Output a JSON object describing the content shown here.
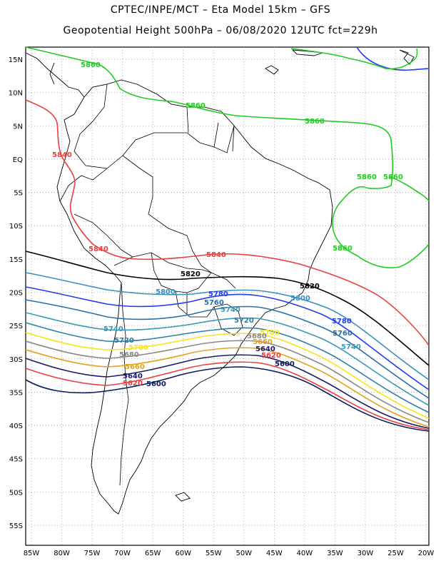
{
  "header": {
    "line1": "CPTEC/INPE/MCT –  Eta Model 15km – GFS",
    "line2": "Geopotential Height 500hPa – 06/08/2020 12UTC fct=229h"
  },
  "axes": {
    "lat_labels": [
      "15N",
      "10N",
      "5N",
      "EQ",
      "5S",
      "10S",
      "15S",
      "20S",
      "25S",
      "30S",
      "35S",
      "40S",
      "45S",
      "50S",
      "55S"
    ],
    "lon_labels": [
      "85W",
      "80W",
      "75W",
      "70W",
      "65W",
      "60W",
      "55W",
      "50W",
      "45W",
      "40W",
      "35W",
      "30W",
      "25W",
      "20W"
    ]
  },
  "colors": {
    "c5860": "#22cc22",
    "c5840": "#e84040",
    "c5820": "#000000",
    "c5800": "#3a8fbf",
    "c5780": "#1f3fe8",
    "c5760": "#2a70a8",
    "c5740": "#3a9ab5",
    "c5720": "#2a7fa8",
    "c5700": "#f5e51a",
    "c5680": "#888888",
    "c5660": "#e5a020",
    "c5640": "#1a1a6a",
    "c5620": "#e84040",
    "c5600": "#0a1a5a",
    "highline": "#1f3fe8"
  },
  "contour_labels": {
    "l5860a": "5860",
    "l5860b": "5860",
    "l5860c": "5860",
    "l5860d": "5860",
    "l5860e": "5860",
    "l5860f": "5860",
    "l5840a": "5840",
    "l5840b": "5840",
    "l5840c": "5840",
    "l5820a": "5820",
    "l5820b": "5820",
    "l5800a": "5800",
    "l5800b": "5800",
    "l5780a": "5780",
    "l5780b": "5780",
    "l5760a": "5760",
    "l5760b": "5760",
    "l5740a": "5740",
    "l5740b": "5740",
    "l5740c": "5740",
    "l5720a": "5720",
    "l5720b": "5720",
    "l5700a": "5700",
    "l5700b": "5700",
    "l5680a": "5680",
    "l5680b": "5680",
    "l5660a": "5660",
    "l5660b": "5660",
    "l5640a": "5640",
    "l5640b": "5640",
    "l5620a": "5620",
    "l5620b": "5620",
    "l5600a": "5600",
    "l5600b": "5600"
  }
}
